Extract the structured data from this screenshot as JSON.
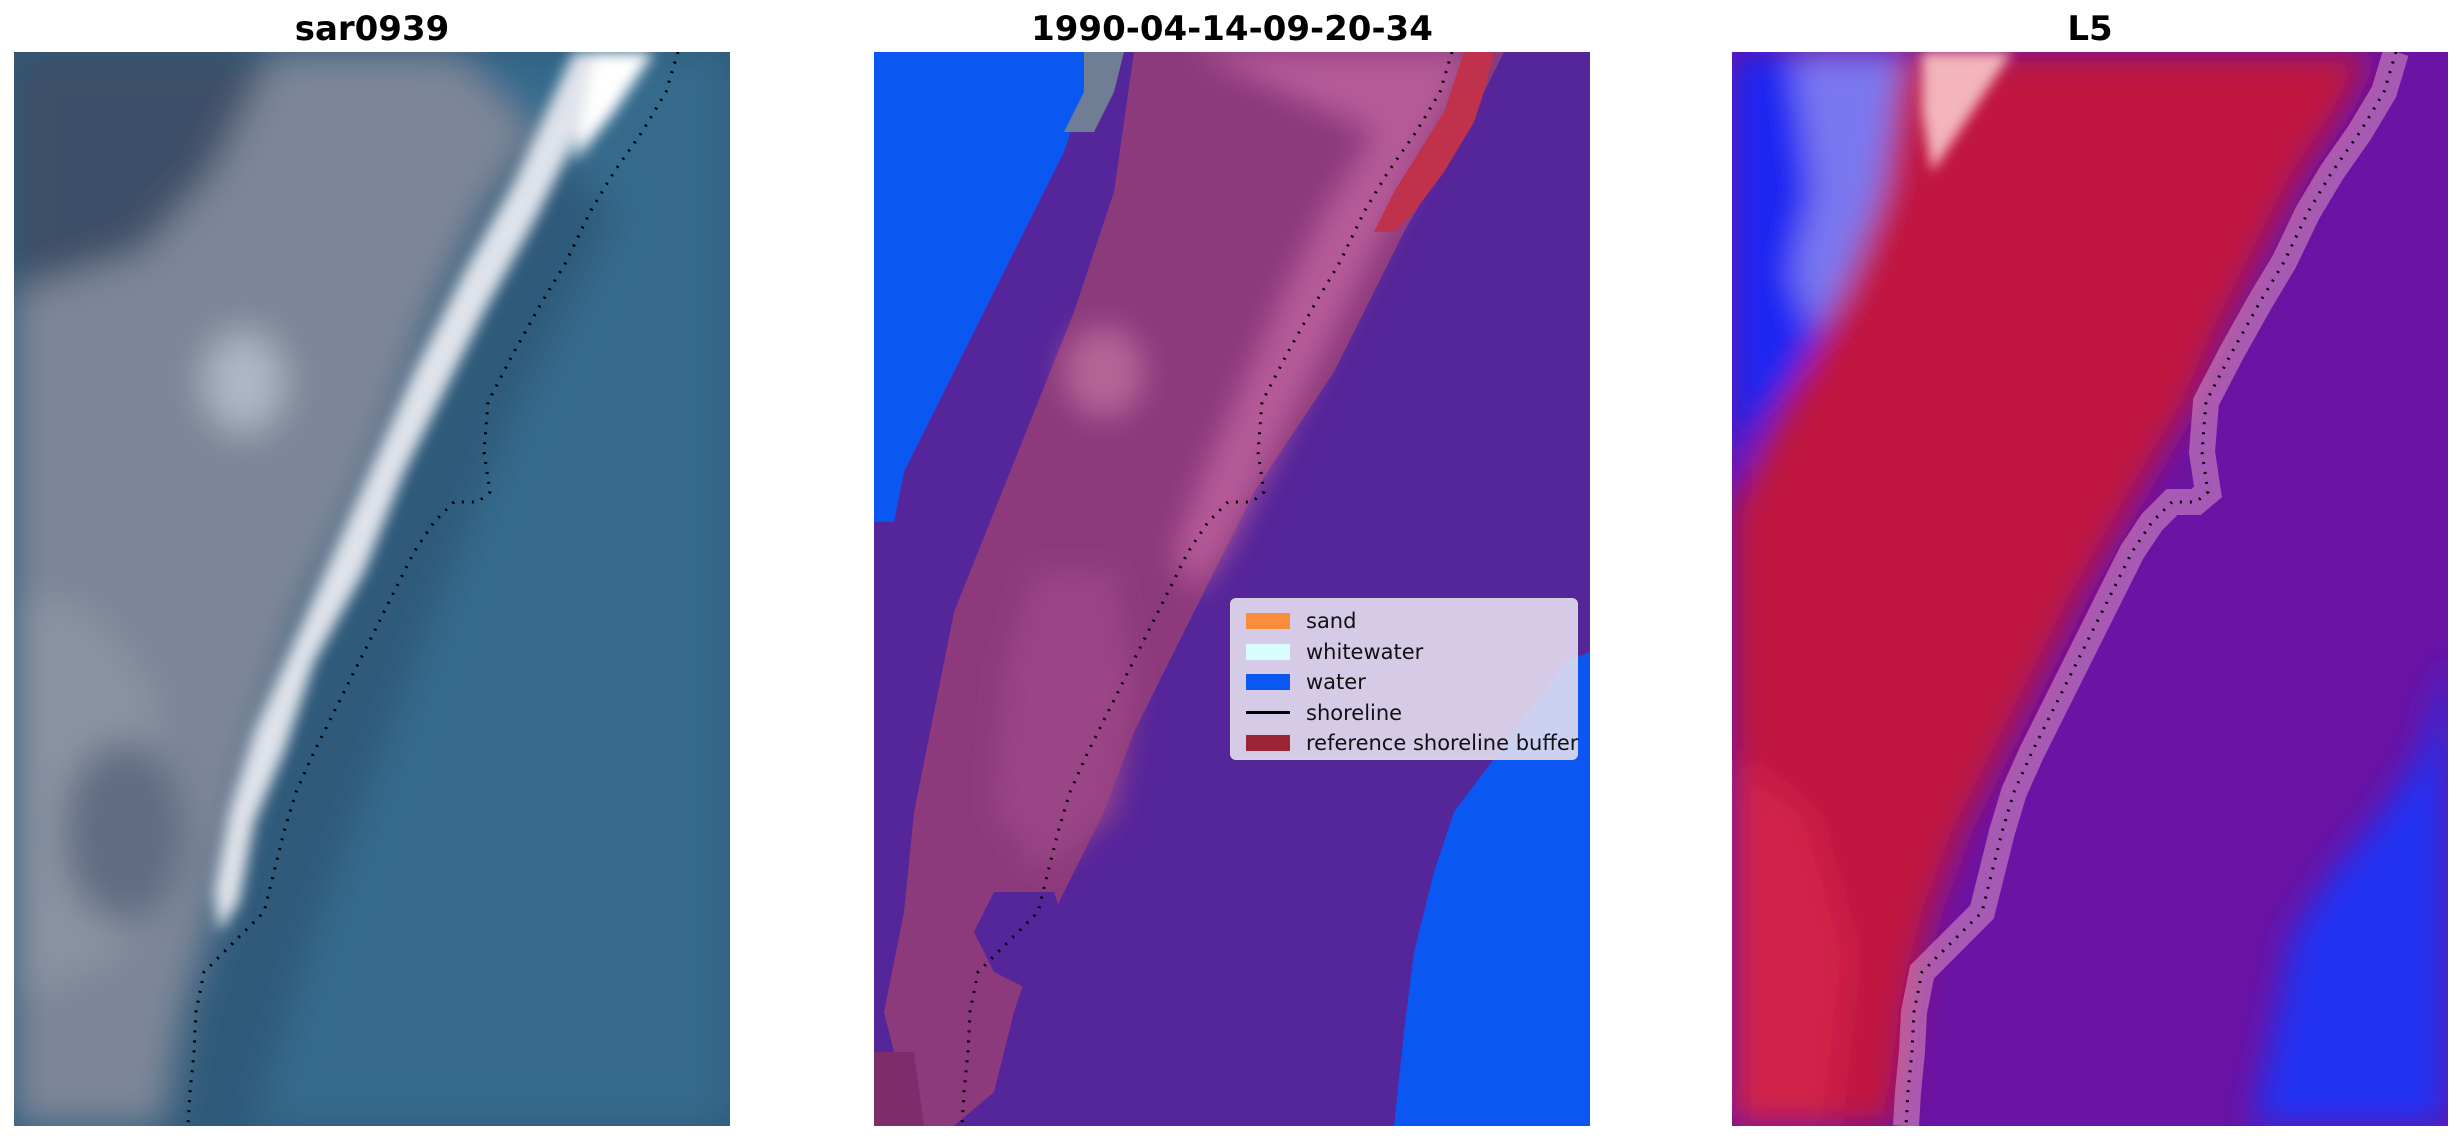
{
  "panels": [
    {
      "title": "sar0939",
      "view": "rgb-image"
    },
    {
      "title": "1990-04-14-09-20-34",
      "view": "classified-image"
    },
    {
      "title": "L5",
      "view": "index-image"
    }
  ],
  "legend": {
    "items": [
      {
        "label": "sand",
        "color": "#fb8c3c",
        "kind": "patch"
      },
      {
        "label": "whitewater",
        "color": "#d6fcfc",
        "kind": "patch"
      },
      {
        "label": "water",
        "color": "#0b57f2",
        "kind": "patch"
      },
      {
        "label": "shoreline",
        "color": "#000000",
        "kind": "line"
      },
      {
        "label": "reference shoreline buffer",
        "color": "#9b2535",
        "kind": "patch"
      }
    ]
  }
}
